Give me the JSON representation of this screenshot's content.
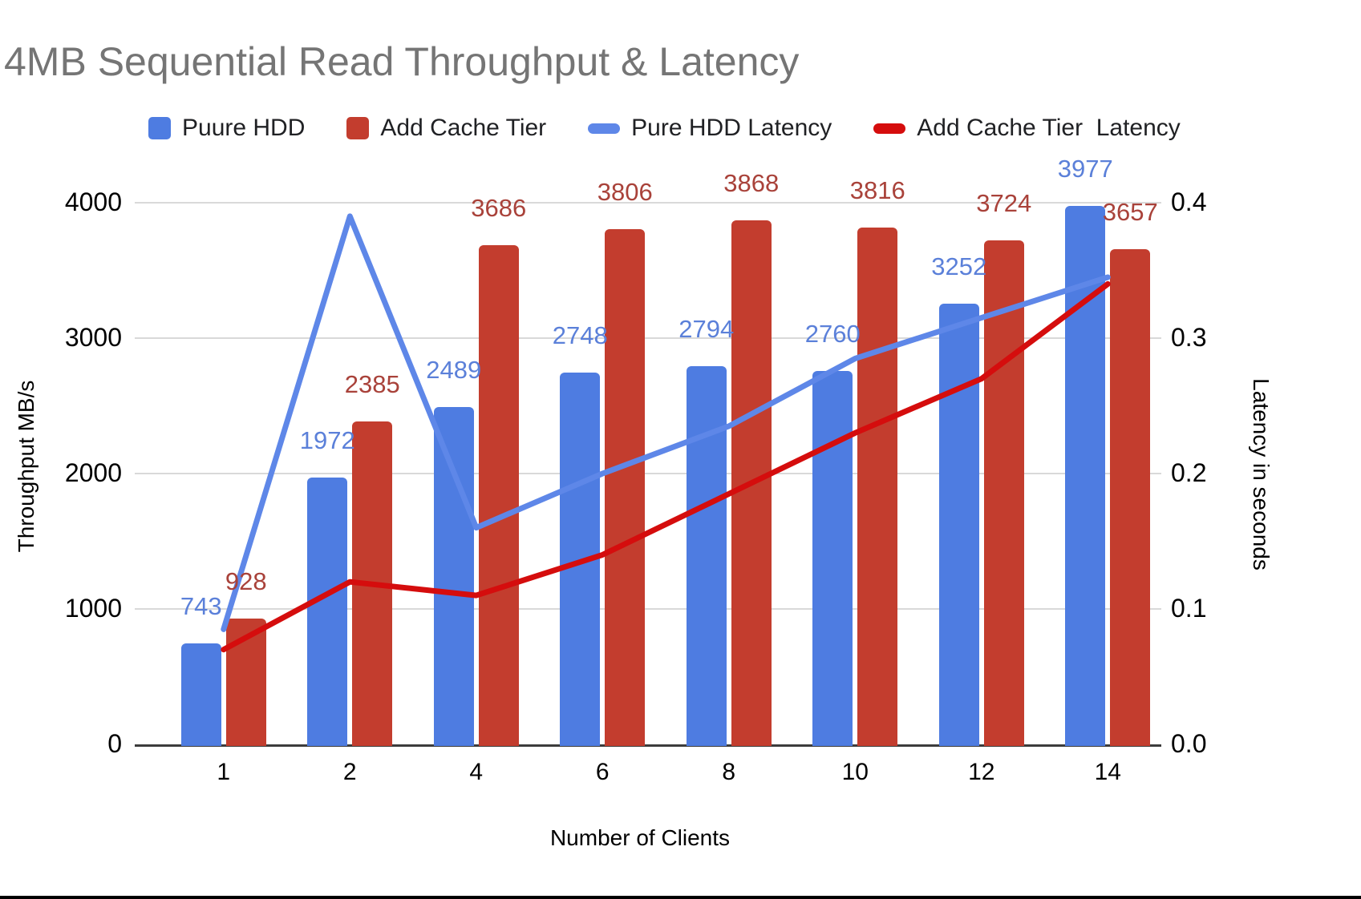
{
  "chart_data": {
    "type": "combo: grouped bars (left axis) + lines (right axis), dual y-axis",
    "title": "4MB Sequential Read Throughput & Latency",
    "categories": [
      "1",
      "2",
      "4",
      "6",
      "8",
      "10",
      "12",
      "14"
    ],
    "series": [
      {
        "name": "Puure HDD",
        "type": "bar",
        "axis": "left",
        "color": "#4e7ce1",
        "label_color": "#5b80d9",
        "values": [
          743,
          1972,
          2489,
          2748,
          2794,
          2760,
          3252,
          3977
        ]
      },
      {
        "name": "Add Cache Tier",
        "type": "bar",
        "axis": "left",
        "color": "#c33d2e",
        "label_color": "#a9423a",
        "values": [
          928,
          2385,
          3686,
          3806,
          3868,
          3816,
          3724,
          3657
        ]
      },
      {
        "name": "Pure HDD Latency",
        "type": "line",
        "axis": "right",
        "color": "#5e87e8",
        "values": [
          0.085,
          0.39,
          0.16,
          0.2,
          0.235,
          0.285,
          0.315,
          0.345
        ]
      },
      {
        "name": "Add Cache Tier  Latency",
        "type": "line",
        "axis": "right",
        "color": "#d50d0d",
        "values": [
          0.07,
          0.12,
          0.11,
          0.14,
          0.185,
          0.23,
          0.27,
          0.34
        ]
      }
    ],
    "axes": {
      "left": {
        "label": "Throughput MB/s",
        "ticks": [
          "4000",
          "3000",
          "2000",
          "1000",
          "0"
        ],
        "lim": [
          0,
          4000
        ]
      },
      "right": {
        "label": "Latency in seconds",
        "ticks": [
          "0.4",
          "0.3",
          "0.2",
          "0.1",
          "0.0"
        ],
        "lim": [
          0,
          0.4
        ]
      },
      "x": {
        "label": "Number of Clients"
      }
    },
    "grid": "horizontal",
    "legend_position": "top-center",
    "title_color": "#757575",
    "background": "#ffffff"
  }
}
